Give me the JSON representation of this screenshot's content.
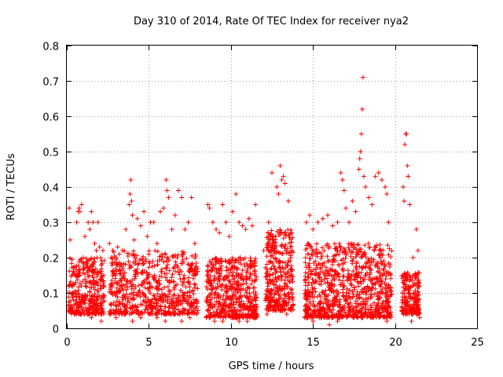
{
  "chart_data": {
    "type": "scatter",
    "title": "Day 310 of 2014, Rate Of TEC Index for receiver nya2",
    "xlabel": "GPS time / hours",
    "ylabel": "ROTI / TECUs",
    "xlim": [
      0,
      25
    ],
    "ylim": [
      0,
      0.8
    ],
    "xticks": [
      "0",
      "5",
      "10",
      "15",
      "20",
      "25"
    ],
    "yticks": [
      "0",
      "0.1",
      "0.2",
      "0.3",
      "0.4",
      "0.5",
      "0.6",
      "0.7",
      "0.8"
    ],
    "xtick_values": [
      0,
      5,
      10,
      15,
      20,
      25
    ],
    "ytick_values": [
      0,
      0.1,
      0.2,
      0.3,
      0.4,
      0.5,
      0.6,
      0.7,
      0.8
    ],
    "grid": true,
    "marker": "+",
    "color": "#ff0000",
    "series": [
      {
        "points": [
          [
            0.15,
            0.34
          ],
          [
            0.2,
            0.25
          ],
          [
            0.3,
            0.12
          ],
          [
            0.4,
            0.08
          ],
          [
            0.5,
            0.15
          ],
          [
            0.6,
            0.3
          ],
          [
            0.7,
            0.33
          ],
          [
            0.75,
            0.34
          ],
          [
            0.8,
            0.33
          ],
          [
            0.9,
            0.35
          ],
          [
            1.0,
            0.2
          ],
          [
            1.1,
            0.26
          ],
          [
            1.2,
            0.18
          ],
          [
            1.3,
            0.3
          ],
          [
            1.4,
            0.28
          ],
          [
            1.5,
            0.33
          ],
          [
            1.6,
            0.3
          ],
          [
            1.7,
            0.24
          ],
          [
            1.8,
            0.22
          ],
          [
            1.9,
            0.3
          ],
          [
            2.0,
            0.23
          ],
          [
            2.2,
            0.22
          ],
          [
            2.6,
            0.24
          ],
          [
            2.7,
            0.2
          ],
          [
            2.8,
            0.22
          ],
          [
            3.0,
            0.2
          ],
          [
            3.1,
            0.23
          ],
          [
            3.2,
            0.21
          ],
          [
            3.4,
            0.22
          ],
          [
            3.6,
            0.28
          ],
          [
            3.8,
            0.35
          ],
          [
            3.85,
            0.38
          ],
          [
            3.9,
            0.42
          ],
          [
            3.95,
            0.36
          ],
          [
            4.0,
            0.32
          ],
          [
            4.1,
            0.25
          ],
          [
            4.3,
            0.31
          ],
          [
            4.5,
            0.29
          ],
          [
            4.7,
            0.33
          ],
          [
            4.9,
            0.26
          ],
          [
            5.1,
            0.3
          ],
          [
            5.3,
            0.3
          ],
          [
            5.5,
            0.24
          ],
          [
            5.7,
            0.33
          ],
          [
            5.9,
            0.34
          ],
          [
            6.05,
            0.42
          ],
          [
            6.1,
            0.39
          ],
          [
            6.2,
            0.37
          ],
          [
            6.4,
            0.28
          ],
          [
            6.6,
            0.32
          ],
          [
            6.8,
            0.39
          ],
          [
            7.0,
            0.37
          ],
          [
            7.2,
            0.28
          ],
          [
            7.4,
            0.3
          ],
          [
            7.6,
            0.37
          ],
          [
            7.8,
            0.24
          ],
          [
            8.6,
            0.35
          ],
          [
            8.7,
            0.34
          ],
          [
            8.9,
            0.3
          ],
          [
            9.1,
            0.28
          ],
          [
            9.3,
            0.27
          ],
          [
            9.5,
            0.35
          ],
          [
            9.7,
            0.3
          ],
          [
            9.9,
            0.26
          ],
          [
            10.1,
            0.33
          ],
          [
            10.3,
            0.38
          ],
          [
            10.5,
            0.3
          ],
          [
            10.7,
            0.29
          ],
          [
            10.9,
            0.28
          ],
          [
            11.1,
            0.31
          ],
          [
            11.3,
            0.29
          ],
          [
            11.5,
            0.35
          ],
          [
            12.0,
            0.22
          ],
          [
            12.3,
            0.3
          ],
          [
            12.5,
            0.44
          ],
          [
            12.8,
            0.4
          ],
          [
            12.9,
            0.38
          ],
          [
            13.0,
            0.46
          ],
          [
            13.1,
            0.42
          ],
          [
            13.2,
            0.43
          ],
          [
            13.3,
            0.41
          ],
          [
            13.5,
            0.36
          ],
          [
            13.7,
            0.27
          ],
          [
            14.6,
            0.3
          ],
          [
            14.8,
            0.32
          ],
          [
            15.0,
            0.28
          ],
          [
            15.3,
            0.3
          ],
          [
            15.6,
            0.31
          ],
          [
            15.9,
            0.32
          ],
          [
            16.2,
            0.29
          ],
          [
            16.5,
            0.3
          ],
          [
            16.7,
            0.44
          ],
          [
            16.8,
            0.42
          ],
          [
            16.9,
            0.39
          ],
          [
            17.0,
            0.34
          ],
          [
            17.2,
            0.3
          ],
          [
            17.4,
            0.36
          ],
          [
            17.6,
            0.33
          ],
          [
            17.8,
            0.45
          ],
          [
            17.85,
            0.48
          ],
          [
            17.9,
            0.5
          ],
          [
            17.95,
            0.55
          ],
          [
            18.0,
            0.62
          ],
          [
            18.05,
            0.71
          ],
          [
            18.1,
            0.43
          ],
          [
            18.2,
            0.4
          ],
          [
            18.4,
            0.37
          ],
          [
            18.6,
            0.35
          ],
          [
            18.8,
            0.43
          ],
          [
            19.0,
            0.44
          ],
          [
            19.2,
            0.42
          ],
          [
            19.4,
            0.4
          ],
          [
            19.5,
            0.38
          ],
          [
            19.6,
            0.3
          ],
          [
            20.5,
            0.4
          ],
          [
            20.55,
            0.36
          ],
          [
            20.6,
            0.52
          ],
          [
            20.65,
            0.55
          ],
          [
            20.7,
            0.55
          ],
          [
            20.75,
            0.46
          ],
          [
            20.8,
            0.43
          ],
          [
            20.9,
            0.35
          ],
          [
            21.1,
            0.2
          ],
          [
            21.3,
            0.28
          ],
          [
            21.4,
            0.22
          ],
          [
            0.1,
            0.05
          ],
          [
            0.3,
            0.06
          ],
          [
            0.6,
            0.05
          ],
          [
            0.9,
            0.04
          ],
          [
            1.2,
            0.05
          ],
          [
            1.5,
            0.03
          ],
          [
            1.8,
            0.05
          ],
          [
            2.1,
            0.02
          ],
          [
            2.6,
            0.04
          ],
          [
            3.0,
            0.03
          ],
          [
            3.5,
            0.04
          ],
          [
            4.0,
            0.02
          ],
          [
            4.5,
            0.03
          ],
          [
            5.0,
            0.04
          ],
          [
            5.5,
            0.03
          ],
          [
            6.0,
            0.02
          ],
          [
            6.5,
            0.04
          ],
          [
            7.0,
            0.02
          ],
          [
            7.5,
            0.03
          ],
          [
            8.5,
            0.03
          ],
          [
            9.0,
            0.02
          ],
          [
            9.5,
            0.02
          ],
          [
            10.0,
            0.03
          ],
          [
            10.5,
            0.02
          ],
          [
            11.0,
            0.02
          ],
          [
            11.4,
            0.03
          ],
          [
            12.2,
            0.04
          ],
          [
            12.6,
            0.06
          ],
          [
            13.0,
            0.05
          ],
          [
            13.4,
            0.04
          ],
          [
            14.5,
            0.03
          ],
          [
            15.0,
            0.02
          ],
          [
            15.5,
            0.03
          ],
          [
            16.0,
            0.01
          ],
          [
            16.5,
            0.02
          ],
          [
            17.0,
            0.04
          ],
          [
            17.5,
            0.03
          ],
          [
            18.0,
            0.04
          ],
          [
            18.5,
            0.03
          ],
          [
            19.0,
            0.05
          ],
          [
            19.5,
            0.02
          ],
          [
            20.5,
            0.05
          ],
          [
            21.0,
            0.02
          ],
          [
            21.3,
            0.04
          ],
          [
            21.5,
            0.03
          ]
        ]
      }
    ],
    "dense_band": {
      "description_free_values": true,
      "segments": [
        [
          0.1,
          2.3,
          0.04,
          0.2,
          90
        ],
        [
          2.6,
          8.0,
          0.04,
          0.22,
          170
        ],
        [
          8.5,
          11.6,
          0.03,
          0.2,
          130
        ],
        [
          12.1,
          13.8,
          0.05,
          0.28,
          90
        ],
        [
          14.5,
          19.8,
          0.03,
          0.24,
          230
        ],
        [
          20.4,
          21.5,
          0.04,
          0.16,
          50
        ]
      ]
    }
  }
}
